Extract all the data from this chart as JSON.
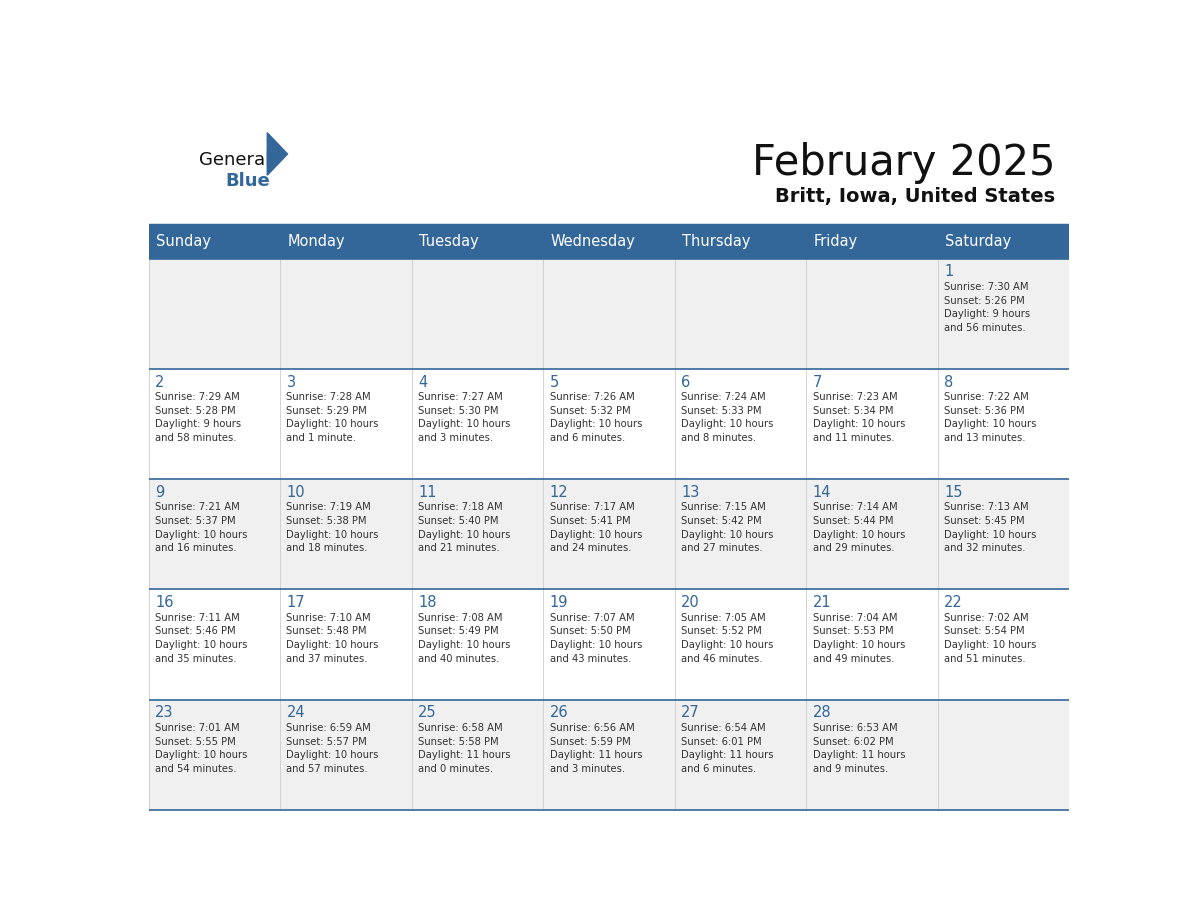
{
  "title": "February 2025",
  "subtitle": "Britt, Iowa, United States",
  "header_bg": "#336699",
  "header_text": "#FFFFFF",
  "day_headers": [
    "Sunday",
    "Monday",
    "Tuesday",
    "Wednesday",
    "Thursday",
    "Friday",
    "Saturday"
  ],
  "cell_bg_odd": "#F0F0F0",
  "cell_bg_even": "#FFFFFF",
  "cell_border_color": "#336699",
  "cell_vline_color": "#CCCCCC",
  "day_number_color": "#336699",
  "cell_text_color": "#333333",
  "background_color": "#FFFFFF",
  "title_color": "#111111",
  "subtitle_color": "#111111",
  "logo_general_color": "#111111",
  "logo_blue_color": "#336699",
  "logo_triangle_color": "#336699",
  "weeks": [
    [
      {
        "day": "",
        "info": ""
      },
      {
        "day": "",
        "info": ""
      },
      {
        "day": "",
        "info": ""
      },
      {
        "day": "",
        "info": ""
      },
      {
        "day": "",
        "info": ""
      },
      {
        "day": "",
        "info": ""
      },
      {
        "day": "1",
        "info": "Sunrise: 7:30 AM\nSunset: 5:26 PM\nDaylight: 9 hours\nand 56 minutes."
      }
    ],
    [
      {
        "day": "2",
        "info": "Sunrise: 7:29 AM\nSunset: 5:28 PM\nDaylight: 9 hours\nand 58 minutes."
      },
      {
        "day": "3",
        "info": "Sunrise: 7:28 AM\nSunset: 5:29 PM\nDaylight: 10 hours\nand 1 minute."
      },
      {
        "day": "4",
        "info": "Sunrise: 7:27 AM\nSunset: 5:30 PM\nDaylight: 10 hours\nand 3 minutes."
      },
      {
        "day": "5",
        "info": "Sunrise: 7:26 AM\nSunset: 5:32 PM\nDaylight: 10 hours\nand 6 minutes."
      },
      {
        "day": "6",
        "info": "Sunrise: 7:24 AM\nSunset: 5:33 PM\nDaylight: 10 hours\nand 8 minutes."
      },
      {
        "day": "7",
        "info": "Sunrise: 7:23 AM\nSunset: 5:34 PM\nDaylight: 10 hours\nand 11 minutes."
      },
      {
        "day": "8",
        "info": "Sunrise: 7:22 AM\nSunset: 5:36 PM\nDaylight: 10 hours\nand 13 minutes."
      }
    ],
    [
      {
        "day": "9",
        "info": "Sunrise: 7:21 AM\nSunset: 5:37 PM\nDaylight: 10 hours\nand 16 minutes."
      },
      {
        "day": "10",
        "info": "Sunrise: 7:19 AM\nSunset: 5:38 PM\nDaylight: 10 hours\nand 18 minutes."
      },
      {
        "day": "11",
        "info": "Sunrise: 7:18 AM\nSunset: 5:40 PM\nDaylight: 10 hours\nand 21 minutes."
      },
      {
        "day": "12",
        "info": "Sunrise: 7:17 AM\nSunset: 5:41 PM\nDaylight: 10 hours\nand 24 minutes."
      },
      {
        "day": "13",
        "info": "Sunrise: 7:15 AM\nSunset: 5:42 PM\nDaylight: 10 hours\nand 27 minutes."
      },
      {
        "day": "14",
        "info": "Sunrise: 7:14 AM\nSunset: 5:44 PM\nDaylight: 10 hours\nand 29 minutes."
      },
      {
        "day": "15",
        "info": "Sunrise: 7:13 AM\nSunset: 5:45 PM\nDaylight: 10 hours\nand 32 minutes."
      }
    ],
    [
      {
        "day": "16",
        "info": "Sunrise: 7:11 AM\nSunset: 5:46 PM\nDaylight: 10 hours\nand 35 minutes."
      },
      {
        "day": "17",
        "info": "Sunrise: 7:10 AM\nSunset: 5:48 PM\nDaylight: 10 hours\nand 37 minutes."
      },
      {
        "day": "18",
        "info": "Sunrise: 7:08 AM\nSunset: 5:49 PM\nDaylight: 10 hours\nand 40 minutes."
      },
      {
        "day": "19",
        "info": "Sunrise: 7:07 AM\nSunset: 5:50 PM\nDaylight: 10 hours\nand 43 minutes."
      },
      {
        "day": "20",
        "info": "Sunrise: 7:05 AM\nSunset: 5:52 PM\nDaylight: 10 hours\nand 46 minutes."
      },
      {
        "day": "21",
        "info": "Sunrise: 7:04 AM\nSunset: 5:53 PM\nDaylight: 10 hours\nand 49 minutes."
      },
      {
        "day": "22",
        "info": "Sunrise: 7:02 AM\nSunset: 5:54 PM\nDaylight: 10 hours\nand 51 minutes."
      }
    ],
    [
      {
        "day": "23",
        "info": "Sunrise: 7:01 AM\nSunset: 5:55 PM\nDaylight: 10 hours\nand 54 minutes."
      },
      {
        "day": "24",
        "info": "Sunrise: 6:59 AM\nSunset: 5:57 PM\nDaylight: 10 hours\nand 57 minutes."
      },
      {
        "day": "25",
        "info": "Sunrise: 6:58 AM\nSunset: 5:58 PM\nDaylight: 11 hours\nand 0 minutes."
      },
      {
        "day": "26",
        "info": "Sunrise: 6:56 AM\nSunset: 5:59 PM\nDaylight: 11 hours\nand 3 minutes."
      },
      {
        "day": "27",
        "info": "Sunrise: 6:54 AM\nSunset: 6:01 PM\nDaylight: 11 hours\nand 6 minutes."
      },
      {
        "day": "28",
        "info": "Sunrise: 6:53 AM\nSunset: 6:02 PM\nDaylight: 11 hours\nand 9 minutes."
      },
      {
        "day": "",
        "info": ""
      }
    ]
  ]
}
